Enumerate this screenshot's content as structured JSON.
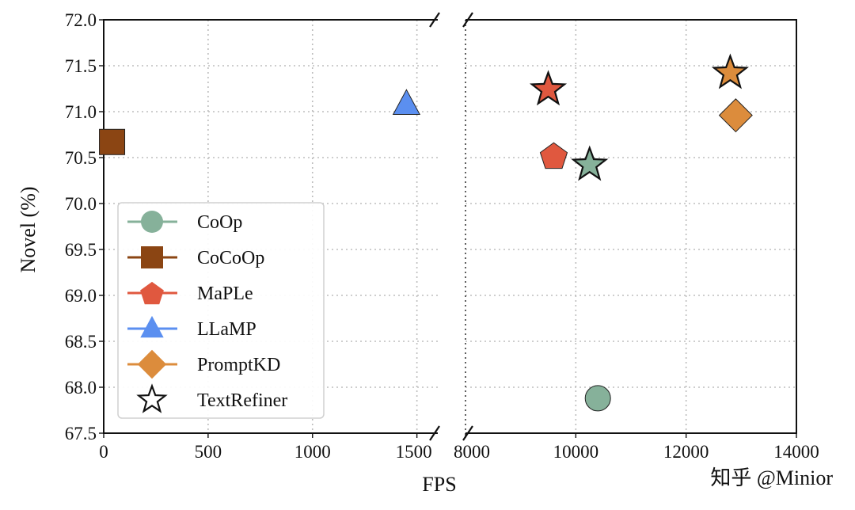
{
  "chart_data": {
    "type": "scatter",
    "xlabel": "FPS",
    "ylabel": "Novel (%)",
    "ylim": [
      67.5,
      72.0
    ],
    "yticks": [
      "67.5",
      "68.0",
      "68.5",
      "69.0",
      "69.5",
      "70.0",
      "70.5",
      "71.0",
      "71.5",
      "72.0"
    ],
    "broken_x_axis": true,
    "x_segments": [
      {
        "xlim": [
          0,
          1600
        ],
        "ticks": [
          0,
          500,
          1000,
          1500
        ],
        "tick_labels": [
          "0",
          "500",
          "1000",
          "1500"
        ]
      },
      {
        "xlim": [
          8000,
          14000
        ],
        "ticks": [
          8000,
          10000,
          12000,
          14000
        ],
        "tick_labels": [
          "8000",
          "10000",
          "12000",
          "14000"
        ]
      }
    ],
    "grid": true,
    "legend_position": "lower-left",
    "series": [
      {
        "name": "CoOp",
        "marker": "circle",
        "color": "#86b19a",
        "points": [
          {
            "x": 10400,
            "y": 67.88
          }
        ]
      },
      {
        "name": "CoCoOp",
        "marker": "square",
        "color": "#8b4513",
        "points": [
          {
            "x": 40,
            "y": 70.67
          }
        ]
      },
      {
        "name": "MaPLe",
        "marker": "pentagon",
        "color": "#e0583f",
        "points": [
          {
            "x": 9600,
            "y": 70.52
          }
        ]
      },
      {
        "name": "LLaMP",
        "marker": "triangle",
        "color": "#5b8ff0",
        "points": [
          {
            "x": 1450,
            "y": 71.08
          }
        ]
      },
      {
        "name": "PromptKD",
        "marker": "diamond",
        "color": "#dc8c3c",
        "points": [
          {
            "x": 12900,
            "y": 70.96
          }
        ]
      },
      {
        "name": "TextRefiner",
        "marker": "star",
        "color": "#ffffff",
        "points": [
          {
            "x": 10250,
            "y": 70.42,
            "fill": "#86b19a"
          },
          {
            "x": 9500,
            "y": 71.24,
            "fill": "#e0583f"
          },
          {
            "x": 12800,
            "y": 71.42,
            "fill": "#dc8c3c"
          }
        ]
      }
    ]
  },
  "watermark": "知乎 @Minior"
}
